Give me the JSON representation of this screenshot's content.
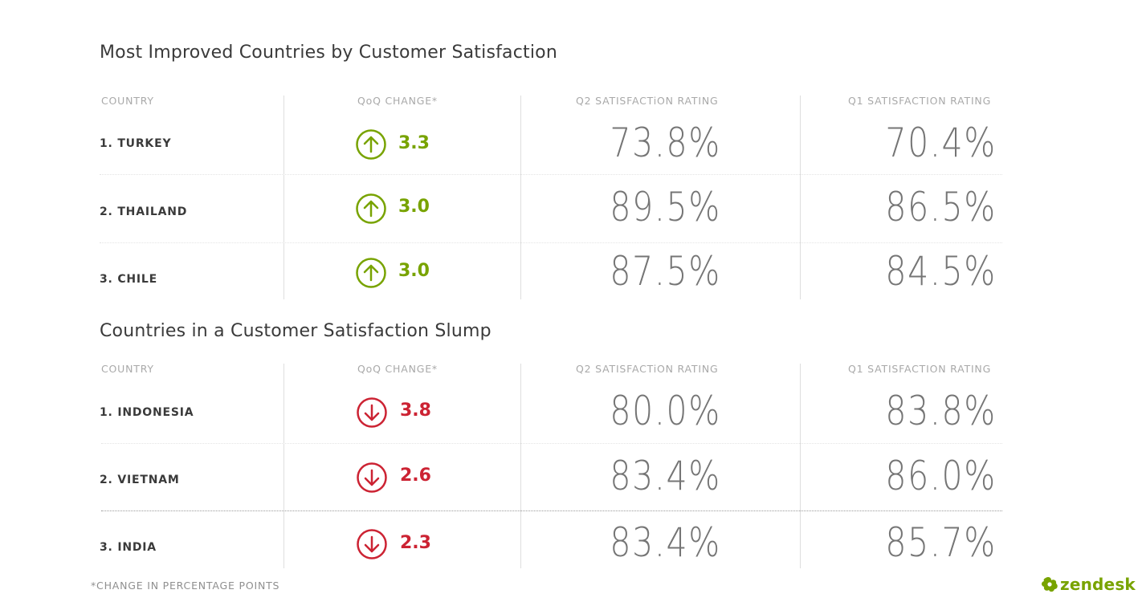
{
  "colors": {
    "up": "#78a300",
    "down": "#cc2333"
  },
  "footnote": "*CHANGE IN PERCENTAGE POINTS",
  "brand": "zendesk",
  "chart_data": [
    {
      "type": "table",
      "title": "Most Improved Countries by Customer Satisfaction",
      "columns": [
        "COUNTRY",
        "QoQ CHANGE*",
        "Q2 SATISFACTiON RATING",
        "Q1 SATISFACTION RATING"
      ],
      "rows": [
        {
          "country": "1. TURKEY",
          "direction": "up",
          "change": "3.3",
          "q2": "73.8%",
          "q1": "70.4%"
        },
        {
          "country": "2. THAILAND",
          "direction": "up",
          "change": "3.0",
          "q2": "89.5%",
          "q1": "86.5%"
        },
        {
          "country": "3. CHILE",
          "direction": "up",
          "change": "3.0",
          "q2": "87.5%",
          "q1": "84.5%"
        }
      ]
    },
    {
      "type": "table",
      "title": "Countries in a Customer Satisfaction Slump",
      "columns": [
        "COUNTRY",
        "QoQ CHANGE*",
        "Q2 SATISFACTiON RATING",
        "Q1 SATISFACTION RATING"
      ],
      "rows": [
        {
          "country": "1. INDONESIA",
          "direction": "down",
          "change": "3.8",
          "q2": "80.0%",
          "q1": "83.8%"
        },
        {
          "country": "2. VIETNAM",
          "direction": "down",
          "change": "2.6",
          "q2": "83.4%",
          "q1": "86.0%"
        },
        {
          "country": "3. INDIA",
          "direction": "down",
          "change": "2.3",
          "q2": "83.4%",
          "q1": "85.7%"
        }
      ]
    }
  ]
}
